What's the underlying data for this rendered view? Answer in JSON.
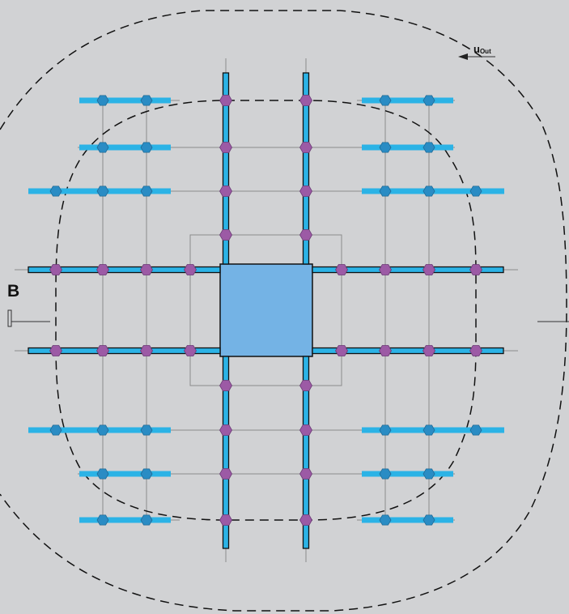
{
  "labels": {
    "section_marker": "B",
    "outer_perimeter": "u",
    "outer_perimeter_subscript": "Out"
  },
  "colors": {
    "background": "#d1d2d4",
    "column": "#74b3e5",
    "bar": "#2bb3e6",
    "stud": "#9c5aa5",
    "stud_outer": "#2a8cc4",
    "grid_line": "#8c8c8c",
    "perimeter_line": "#111111"
  },
  "icons": {
    "section_cut": "section-cut-icon",
    "arrow": "arrow-left-icon",
    "stud": "hexagon-stud-icon"
  }
}
